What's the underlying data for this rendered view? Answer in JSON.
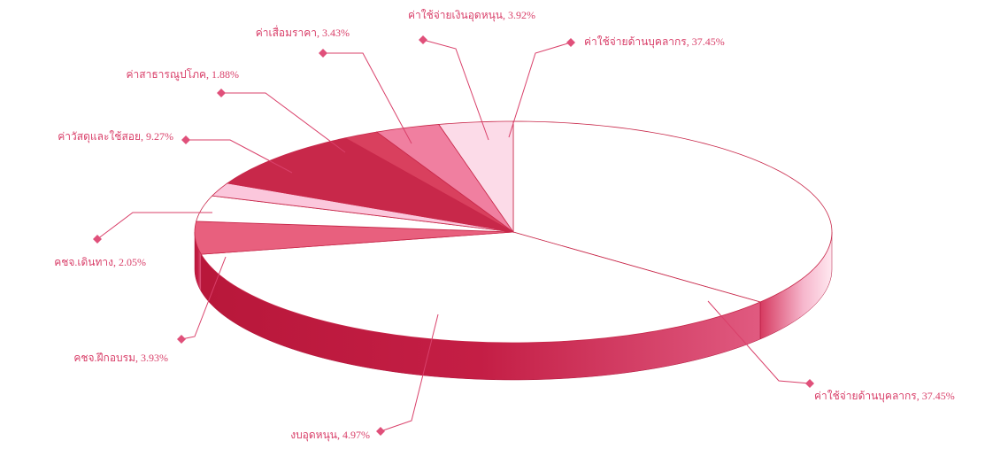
{
  "chart_data": {
    "type": "pie3d",
    "value_labels": [
      "ค่าใช้จ่ายด้านบุคลากร, 37.45%",
      "ค่าใช้จ่ายด้านบุคลากร, 37.45%",
      "งบอุดหนุน, 4.97%",
      "คชจ.ฝึกอบรม, 3.93%",
      "คชจ.เดินทาง, 2.05%",
      "ค่าวัสดุและใช้สอย, 9.27%",
      "ค่าสาธารณูปโภค, 1.88%",
      "ค่าเสื่อมราคา, 3.43%",
      "ค่าใช้จ่ายเงินอุดหนุน, 3.92%"
    ],
    "values": [
      37.45,
      37.45,
      4.97,
      3.93,
      2.05,
      9.27,
      1.88,
      3.43,
      3.92
    ],
    "colors": [
      "#ffffff",
      "#ffffff",
      "#e8607e",
      "#ffffff",
      "#fbc7dc",
      "#c8284a",
      "#d9405e",
      "#f07fa0",
      "#fcdbe8"
    ]
  }
}
